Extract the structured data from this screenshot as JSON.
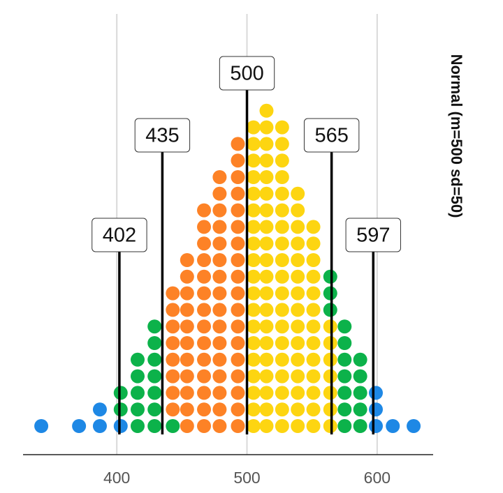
{
  "chart_data": {
    "type": "dotplot",
    "title": "Normal (m=500 sd=50)",
    "x": [
      342,
      371,
      387,
      403,
      416,
      429,
      443,
      454,
      467,
      479,
      493,
      505,
      515,
      527,
      539,
      551,
      564,
      575,
      587,
      599,
      612,
      628
    ],
    "series": [
      {
        "color": "#1e88e5",
        "values": [
          1,
          1,
          2,
          1,
          0,
          0,
          0,
          0,
          0,
          0,
          0,
          0,
          0,
          0,
          0,
          0,
          0,
          0,
          0,
          3,
          1,
          1
        ]
      },
      {
        "color": "#0cb24a",
        "values": [
          0,
          0,
          0,
          2,
          5,
          7,
          1,
          0,
          0,
          0,
          0,
          0,
          0,
          0,
          0,
          0,
          0,
          0,
          0,
          0,
          0,
          0
        ]
      },
      {
        "color": "#fd8226",
        "values": [
          0,
          0,
          0,
          0,
          0,
          0,
          8,
          11,
          14,
          16,
          18,
          0,
          0,
          0,
          0,
          0,
          0,
          0,
          0,
          0,
          0,
          0
        ]
      },
      {
        "color": "#fdd511",
        "values": [
          0,
          0,
          0,
          0,
          0,
          0,
          0,
          0,
          0,
          0,
          0,
          19,
          20,
          19,
          15,
          13,
          7,
          0,
          0,
          0,
          0,
          0
        ]
      },
      {
        "color": "#0cb24a",
        "values": [
          0,
          0,
          0,
          0,
          0,
          0,
          0,
          0,
          0,
          0,
          0,
          0,
          0,
          0,
          0,
          0,
          3,
          7,
          5,
          0,
          0,
          0
        ]
      }
    ],
    "quantiles": [
      402,
      435,
      500,
      565,
      597
    ],
    "xlim": [
      328,
      643
    ],
    "xticks": [
      400,
      500,
      600
    ],
    "grid": true
  }
}
